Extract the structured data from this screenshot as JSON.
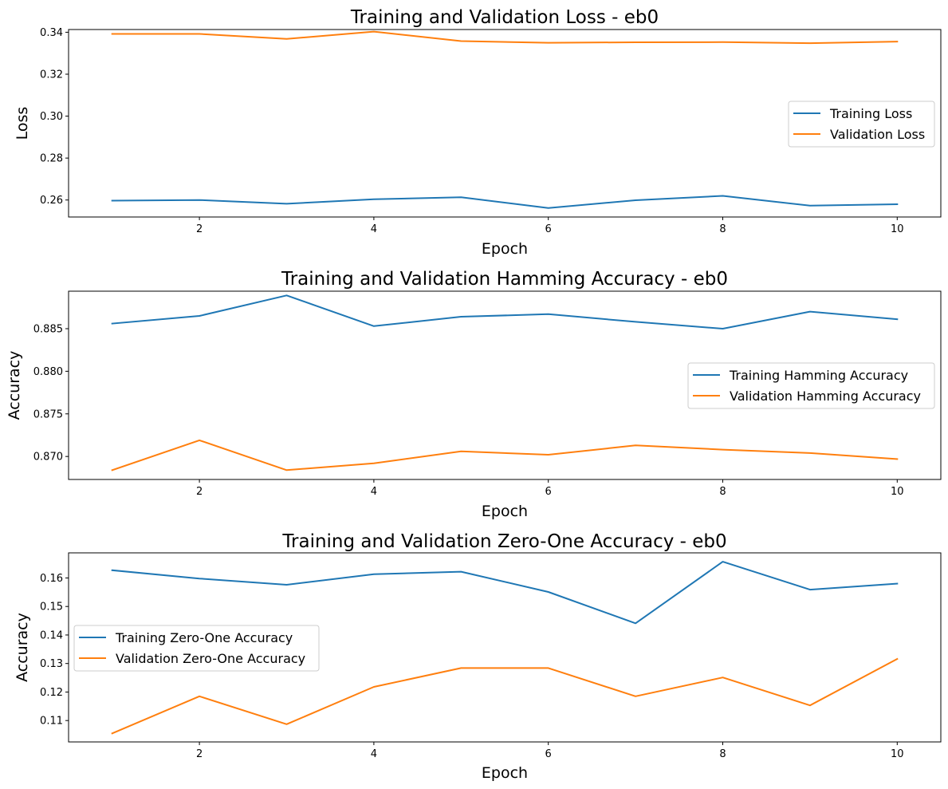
{
  "chart_data": [
    {
      "type": "line",
      "title": "Training and Validation Loss - eb0",
      "xlabel": "Epoch",
      "ylabel": "Loss",
      "x": [
        1,
        2,
        3,
        4,
        5,
        6,
        7,
        8,
        9,
        10
      ],
      "xlim": [
        0.5,
        10.5
      ],
      "ylim": [
        0.2519,
        0.3413
      ],
      "xticks": [
        2,
        4,
        6,
        8,
        10
      ],
      "yticks": [
        0.26,
        0.28,
        0.3,
        0.32,
        0.34
      ],
      "ytick_labels": [
        "0.26",
        "0.28",
        "0.30",
        "0.32",
        "0.34"
      ],
      "legend_position": "center-right",
      "grid": false,
      "series": [
        {
          "name": "Training Loss",
          "color": "#1f77b4",
          "values": [
            0.2597,
            0.26,
            0.2582,
            0.2604,
            0.2613,
            0.2562,
            0.2599,
            0.262,
            0.2573,
            0.258
          ]
        },
        {
          "name": "Validation Loss",
          "color": "#ff7f0e",
          "values": [
            0.3392,
            0.3392,
            0.3368,
            0.3403,
            0.3358,
            0.335,
            0.3352,
            0.3353,
            0.3348,
            0.3355
          ]
        }
      ]
    },
    {
      "type": "line",
      "title": "Training and Validation Hamming Accuracy - eb0",
      "xlabel": "Epoch",
      "ylabel": "Accuracy",
      "x": [
        1,
        2,
        3,
        4,
        5,
        6,
        7,
        8,
        9,
        10
      ],
      "xlim": [
        0.5,
        10.5
      ],
      "ylim": [
        0.8673,
        0.8894
      ],
      "xticks": [
        2,
        4,
        6,
        8,
        10
      ],
      "yticks": [
        0.87,
        0.875,
        0.88,
        0.885
      ],
      "ytick_labels": [
        "0.870",
        "0.875",
        "0.880",
        "0.885"
      ],
      "legend_position": "center-right",
      "grid": false,
      "series": [
        {
          "name": "Training Hamming Accuracy",
          "color": "#1f77b4",
          "values": [
            0.8856,
            0.8865,
            0.8889,
            0.8853,
            0.8864,
            0.8867,
            0.8858,
            0.885,
            0.887,
            0.8861
          ]
        },
        {
          "name": "Validation Hamming Accuracy",
          "color": "#ff7f0e",
          "values": [
            0.8684,
            0.8719,
            0.8684,
            0.8692,
            0.8706,
            0.8702,
            0.8713,
            0.8708,
            0.8704,
            0.8697
          ]
        }
      ]
    },
    {
      "type": "line",
      "title": "Training and Validation Zero-One Accuracy - eb0",
      "xlabel": "Epoch",
      "ylabel": "Accuracy",
      "x": [
        1,
        2,
        3,
        4,
        5,
        6,
        7,
        8,
        9,
        10
      ],
      "xlim": [
        0.5,
        10.5
      ],
      "ylim": [
        0.1025,
        0.1688
      ],
      "xticks": [
        2,
        4,
        6,
        8,
        10
      ],
      "yticks": [
        0.11,
        0.12,
        0.13,
        0.14,
        0.15,
        0.16
      ],
      "ytick_labels": [
        "0.11",
        "0.12",
        "0.13",
        "0.14",
        "0.15",
        "0.16"
      ],
      "legend_position": "center-left",
      "grid": false,
      "series": [
        {
          "name": "Training Zero-One Accuracy",
          "color": "#1f77b4",
          "values": [
            0.1627,
            0.1598,
            0.1576,
            0.1613,
            0.1622,
            0.1551,
            0.1441,
            0.1657,
            0.1559,
            0.158
          ]
        },
        {
          "name": "Validation Zero-One Accuracy",
          "color": "#ff7f0e",
          "values": [
            0.1055,
            0.1185,
            0.1087,
            0.1218,
            0.1284,
            0.1284,
            0.1185,
            0.1251,
            0.1153,
            0.1316
          ]
        }
      ]
    }
  ]
}
